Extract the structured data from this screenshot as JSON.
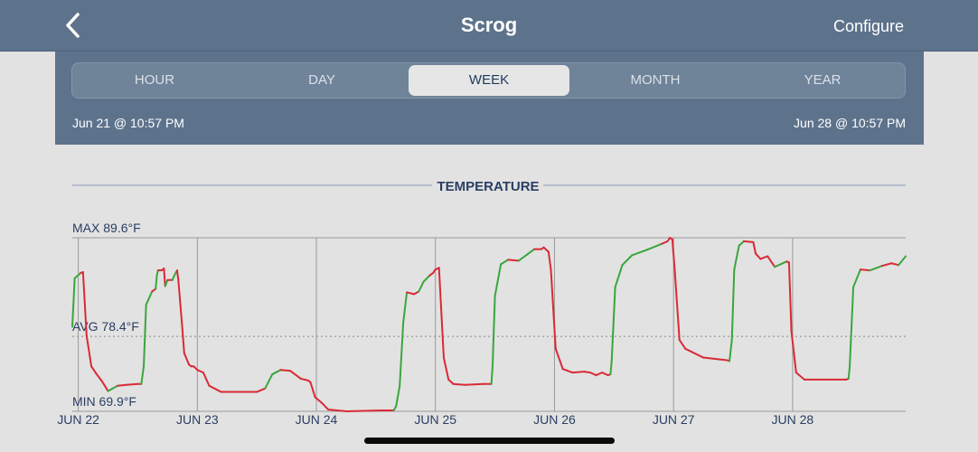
{
  "nav": {
    "title": "Scrog",
    "configure_label": "Configure",
    "back_icon": "chevron-left-icon"
  },
  "range_tabs": [
    {
      "label": "HOUR",
      "active": false
    },
    {
      "label": "DAY",
      "active": false
    },
    {
      "label": "WEEK",
      "active": true
    },
    {
      "label": "MONTH",
      "active": false
    },
    {
      "label": "YEAR",
      "active": false
    }
  ],
  "date_range": {
    "start": "Jun 21 @ 10:57 PM",
    "end": "Jun 28 @ 10:57 PM"
  },
  "colors": {
    "header_bg": "#5d738c",
    "line_rising": "#3aa63d",
    "line_falling": "#d92a35",
    "axis_text": "#2a3e63",
    "gridline": "#9a9a9a"
  },
  "chart_data": {
    "type": "line",
    "title": "TEMPERATURE",
    "max_label": "MAX 89.6°F",
    "avg_label": "AVG 78.4°F",
    "min_label": "MIN 69.9°F",
    "ylim": [
      69.9,
      89.6
    ],
    "avg": 78.4,
    "x_range": [
      0,
      7
    ],
    "x_ticks": [
      {
        "x": 0.05,
        "label": "JUN 22"
      },
      {
        "x": 1.05,
        "label": "JUN 23"
      },
      {
        "x": 2.05,
        "label": "JUN 24"
      },
      {
        "x": 3.05,
        "label": "JUN 25"
      },
      {
        "x": 4.05,
        "label": "JUN 26"
      },
      {
        "x": 5.05,
        "label": "JUN 27"
      },
      {
        "x": 6.05,
        "label": "JUN 28"
      }
    ],
    "series": [
      {
        "values": [
          [
            0.0,
            79.5
          ],
          [
            0.02,
            85.0
          ],
          [
            0.07,
            85.6
          ],
          [
            0.09,
            85.7
          ],
          [
            0.12,
            78.5
          ],
          [
            0.16,
            75.0
          ],
          [
            0.2,
            74.2
          ],
          [
            0.25,
            73.3
          ],
          [
            0.3,
            72.2
          ],
          [
            0.38,
            72.8
          ],
          [
            0.45,
            72.9
          ],
          [
            0.55,
            73.0
          ],
          [
            0.58,
            73.0
          ],
          [
            0.6,
            75.0
          ],
          [
            0.62,
            82.0
          ],
          [
            0.67,
            83.5
          ],
          [
            0.7,
            83.8
          ],
          [
            0.71,
            85.3
          ],
          [
            0.72,
            85.9
          ],
          [
            0.75,
            85.9
          ],
          [
            0.77,
            86.1
          ],
          [
            0.78,
            84.1
          ],
          [
            0.8,
            84.8
          ],
          [
            0.84,
            84.8
          ],
          [
            0.86,
            85.4
          ],
          [
            0.88,
            85.9
          ],
          [
            0.89,
            84.9
          ],
          [
            0.92,
            80.0
          ],
          [
            0.94,
            76.5
          ],
          [
            0.98,
            75.2
          ],
          [
            1.0,
            75.0
          ],
          [
            1.02,
            75.0
          ],
          [
            1.05,
            74.6
          ],
          [
            1.1,
            74.3
          ],
          [
            1.15,
            72.8
          ],
          [
            1.25,
            72.1
          ],
          [
            1.4,
            72.1
          ],
          [
            1.55,
            72.1
          ],
          [
            1.62,
            72.5
          ],
          [
            1.68,
            74.1
          ],
          [
            1.75,
            74.6
          ],
          [
            1.83,
            74.5
          ],
          [
            1.92,
            73.6
          ],
          [
            1.98,
            73.4
          ],
          [
            2.0,
            73.2
          ],
          [
            2.04,
            71.5
          ],
          [
            2.1,
            70.8
          ],
          [
            2.15,
            70.1
          ],
          [
            2.3,
            69.9
          ],
          [
            2.6,
            70.0
          ],
          [
            2.7,
            70.0
          ],
          [
            2.72,
            70.5
          ],
          [
            2.75,
            72.8
          ],
          [
            2.78,
            80.0
          ],
          [
            2.81,
            83.4
          ],
          [
            2.87,
            83.2
          ],
          [
            2.91,
            83.5
          ],
          [
            2.95,
            84.6
          ],
          [
            3.0,
            85.3
          ],
          [
            3.03,
            85.6
          ],
          [
            3.05,
            86.0
          ],
          [
            3.07,
            86.1
          ],
          [
            3.08,
            86.2
          ],
          [
            3.12,
            76.0
          ],
          [
            3.16,
            73.5
          ],
          [
            3.2,
            73.0
          ],
          [
            3.3,
            72.9
          ],
          [
            3.45,
            73.0
          ],
          [
            3.52,
            73.0
          ],
          [
            3.53,
            75.0
          ],
          [
            3.55,
            83.0
          ],
          [
            3.6,
            86.6
          ],
          [
            3.66,
            87.1
          ],
          [
            3.75,
            87.0
          ],
          [
            3.82,
            87.7
          ],
          [
            3.88,
            88.3
          ],
          [
            3.94,
            88.3
          ],
          [
            3.96,
            88.5
          ],
          [
            4.0,
            88.0
          ],
          [
            4.02,
            86.0
          ],
          [
            4.06,
            77.0
          ],
          [
            4.12,
            74.7
          ],
          [
            4.2,
            74.3
          ],
          [
            4.3,
            74.4
          ],
          [
            4.35,
            74.3
          ],
          [
            4.4,
            74.0
          ],
          [
            4.45,
            74.3
          ],
          [
            4.5,
            74.0
          ],
          [
            4.52,
            74.1
          ],
          [
            4.53,
            75.5
          ],
          [
            4.56,
            84.0
          ],
          [
            4.62,
            86.5
          ],
          [
            4.7,
            87.6
          ],
          [
            4.82,
            88.2
          ],
          [
            4.95,
            88.9
          ],
          [
            5.0,
            89.2
          ],
          [
            5.02,
            89.6
          ],
          [
            5.04,
            89.4
          ],
          [
            5.06,
            86.0
          ],
          [
            5.1,
            78.0
          ],
          [
            5.15,
            77.0
          ],
          [
            5.3,
            76.0
          ],
          [
            5.5,
            75.7
          ],
          [
            5.52,
            75.6
          ],
          [
            5.54,
            78.0
          ],
          [
            5.56,
            86.0
          ],
          [
            5.6,
            88.7
          ],
          [
            5.64,
            89.2
          ],
          [
            5.72,
            89.1
          ],
          [
            5.74,
            87.8
          ],
          [
            5.78,
            87.2
          ],
          [
            5.84,
            87.5
          ],
          [
            5.9,
            86.3
          ],
          [
            6.0,
            86.9
          ],
          [
            6.02,
            86.8
          ],
          [
            6.04,
            79.0
          ],
          [
            6.08,
            74.3
          ],
          [
            6.15,
            73.5
          ],
          [
            6.3,
            73.5
          ],
          [
            6.5,
            73.5
          ],
          [
            6.52,
            73.6
          ],
          [
            6.53,
            75.0
          ],
          [
            6.56,
            84.0
          ],
          [
            6.62,
            86.0
          ],
          [
            6.7,
            85.9
          ],
          [
            6.8,
            86.4
          ],
          [
            6.88,
            86.7
          ],
          [
            6.94,
            86.5
          ],
          [
            7.0,
            87.5
          ]
        ]
      }
    ]
  }
}
